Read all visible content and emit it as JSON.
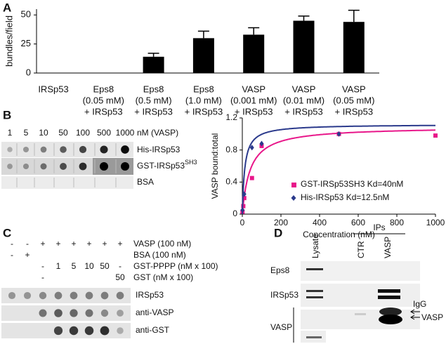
{
  "panels": {
    "a": "A",
    "b": "B",
    "c": "C",
    "d": "D"
  },
  "chart_data": [
    {
      "type": "bar",
      "y_label": "bundles/field",
      "categories": [
        [
          "IRSp53"
        ],
        [
          "Eps8",
          "(0.05 mM)",
          "+ IRSp53"
        ],
        [
          "Eps8",
          "(0.5 mM)",
          "+ IRSp53"
        ],
        [
          "Eps8",
          "(1.0 mM)",
          "+ IRSp53"
        ],
        [
          "VASP",
          "(0.001 mM)",
          "+ IRSp53"
        ],
        [
          "VASP",
          "(0.01 mM)",
          "+ IRSp53"
        ],
        [
          "VASP",
          "(0.05 mM)",
          "+ IRSp53"
        ]
      ],
      "values": [
        0,
        0,
        14,
        30,
        33,
        45,
        44
      ],
      "errors": [
        null,
        null,
        3,
        6,
        6,
        4,
        10
      ],
      "color": "#000000",
      "ylim": [
        0,
        55
      ],
      "yticks": [
        0,
        25,
        50
      ]
    },
    {
      "type": "scatter",
      "x_label": "Concentration (nM)",
      "y_label": "VASP bound:total",
      "xlim": [
        0,
        1000
      ],
      "xticks": [
        0,
        200,
        400,
        600,
        800,
        1000
      ],
      "ylim": [
        0,
        1.2
      ],
      "yticks": [
        0,
        0.4,
        0.8,
        1.2
      ],
      "series": [
        {
          "name": "GST-IRSp53SH3 Kd=40nM",
          "color": "#e8178a",
          "marker": "square",
          "kd": 40,
          "bmax": 1.09,
          "x": [
            1,
            5,
            10,
            50,
            100,
            500,
            1000
          ],
          "values": [
            0.03,
            0.1,
            0.2,
            0.45,
            0.85,
            1.0,
            0.98
          ]
        },
        {
          "name": "His-IRSp53 Kd=12.5nM",
          "color": "#2b3a8c",
          "marker": "diamond",
          "kd": 12.5,
          "bmax": 1.12,
          "x": [
            1,
            10,
            50,
            100,
            500
          ],
          "values": [
            0.05,
            0.25,
            0.83,
            0.88,
            1.0
          ]
        }
      ]
    }
  ],
  "blot_b": {
    "concentrations": [
      1,
      5,
      10,
      50,
      100,
      500,
      1000
    ],
    "unit": "nM (VASP)",
    "rows": [
      "His-IRSp53",
      "GST-IRSp53",
      "BSA"
    ],
    "sup": "SH3"
  },
  "blot_c": {
    "conditions": [
      {
        "label": "VASP (100 nM)",
        "cells": [
          "-",
          "-",
          "+",
          "+",
          "+",
          "+",
          "+",
          "+"
        ]
      },
      {
        "label": "BSA (100 nM)",
        "cells": [
          "-",
          "+",
          null,
          null,
          null,
          null,
          null,
          null
        ]
      },
      {
        "label": "GST-PPPP (nM x 100)",
        "cells": [
          null,
          null,
          "-",
          "1",
          "5",
          "10",
          "50",
          "-"
        ]
      },
      {
        "label": "GST (nM x 100)",
        "cells": [
          null,
          null,
          "-",
          null,
          null,
          null,
          null,
          "50"
        ]
      }
    ],
    "rows": [
      "IRSp53",
      "anti-VASP",
      "anti-GST"
    ]
  },
  "blot_d": {
    "ips": "IPs",
    "lanes": [
      "Lysate",
      "CTR",
      "VASP"
    ],
    "rows": [
      "Eps8",
      "IRSp53",
      "VASP"
    ],
    "arrows": [
      "IgG",
      "VASP"
    ]
  }
}
